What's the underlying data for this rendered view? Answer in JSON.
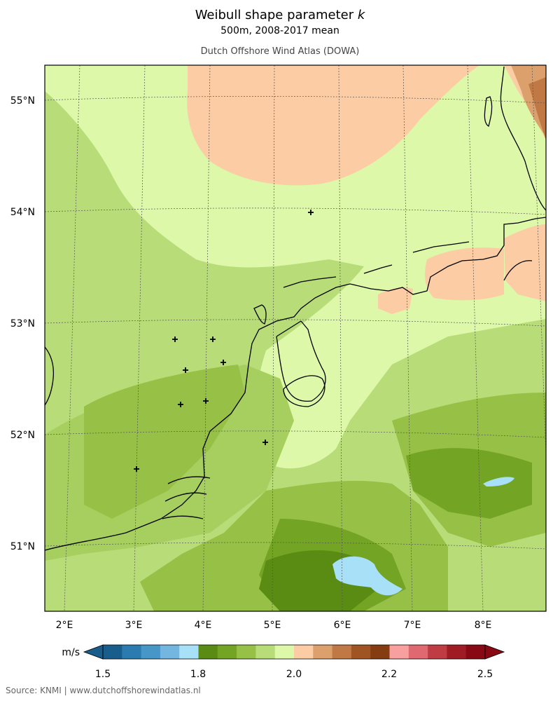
{
  "header": {
    "title": "Weibull shape parameter k",
    "subtitle": "500m, 2008-2017 mean",
    "source": "Dutch Offshore Wind Atlas (DOWA)"
  },
  "axes": {
    "lat_labels": [
      "55°N",
      "54°N",
      "53°N",
      "52°N",
      "51°N"
    ],
    "lon_labels": [
      "2°E",
      "3°E",
      "4°E",
      "5°E",
      "6°E",
      "7°E",
      "8°E"
    ]
  },
  "colorbar": {
    "unit": "m/s",
    "tick_labels": [
      "1.5",
      "1.8",
      "2.0",
      "2.2",
      "2.5"
    ],
    "colors": [
      "#185d8b",
      "#2a7bb0",
      "#4696c8",
      "#73b6e0",
      "#a8e0f8",
      "#5a8c14",
      "#74a424",
      "#97c046",
      "#b8dc78",
      "#dcf8a8",
      "#fccca4",
      "#dca06c",
      "#c07844",
      "#a05424",
      "#843c10",
      "#f8a0a0",
      "#e06870",
      "#c03c44",
      "#a01c24",
      "#880814"
    ]
  },
  "map_colors": {
    "k_1_9": "#b8dc78",
    "k_2_0": "#dcf8a8",
    "k_1_95": "#a6cf60",
    "k_1_85": "#97c046",
    "k_1_8": "#74a424",
    "k_1_75": "#5a8c14",
    "k_2_05": "#fccca4",
    "k_2_1": "#dca06c",
    "k_2_15": "#c07844",
    "k_1_7": "#a8e0f8"
  },
  "markers": {
    "count": 9,
    "symbol": "+"
  },
  "footer": {
    "text": "Source: KNMI | www.dutchoffshorewindatlas.nl"
  }
}
